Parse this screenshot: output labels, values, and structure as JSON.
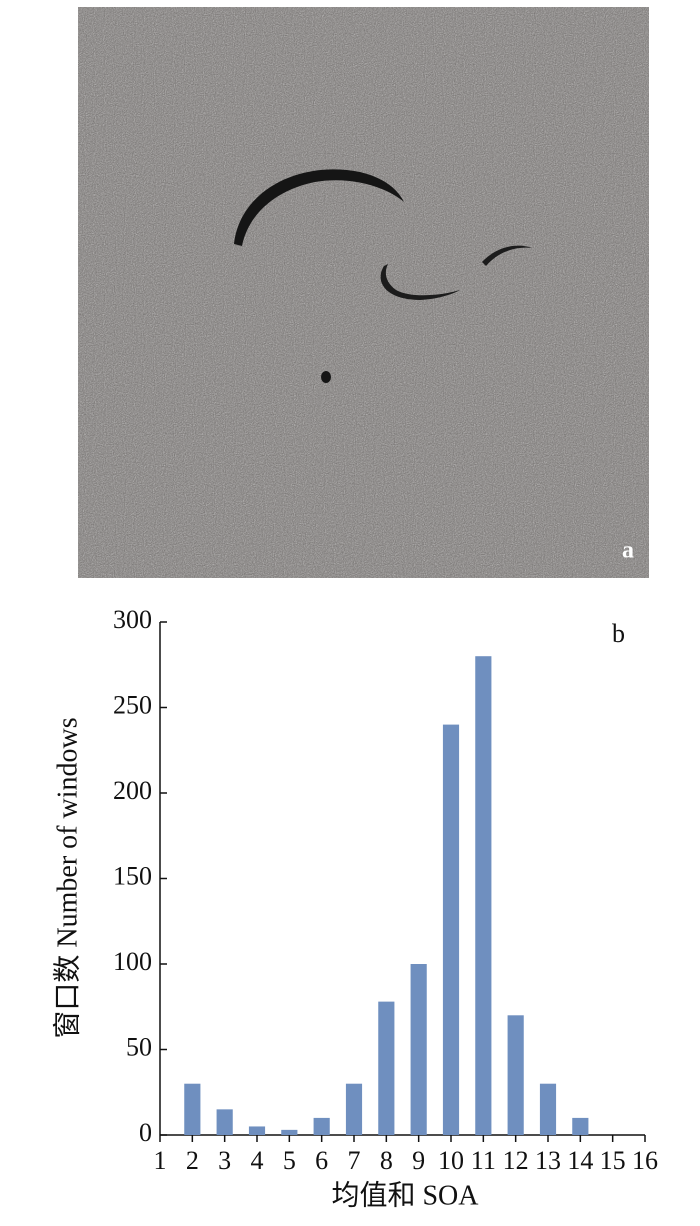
{
  "image": {
    "label": "a"
  },
  "chart_data": {
    "type": "bar",
    "annotation": "b",
    "x_label": "均值和 SOA",
    "y_label": "窗口数 Number of windows",
    "x": [
      2,
      3,
      4,
      5,
      6,
      7,
      8,
      9,
      10,
      11,
      12,
      13,
      14
    ],
    "values": [
      30,
      15,
      5,
      3,
      10,
      30,
      78,
      100,
      240,
      280,
      70,
      30,
      10
    ],
    "color": "#6f8fbf",
    "xlim": [
      1,
      16
    ],
    "xticks": [
      1,
      2,
      3,
      4,
      5,
      6,
      7,
      8,
      9,
      10,
      11,
      12,
      13,
      14,
      15,
      16
    ],
    "ylim": [
      0,
      300
    ],
    "yticks": [
      0,
      50,
      100,
      150,
      200,
      250,
      300
    ]
  }
}
